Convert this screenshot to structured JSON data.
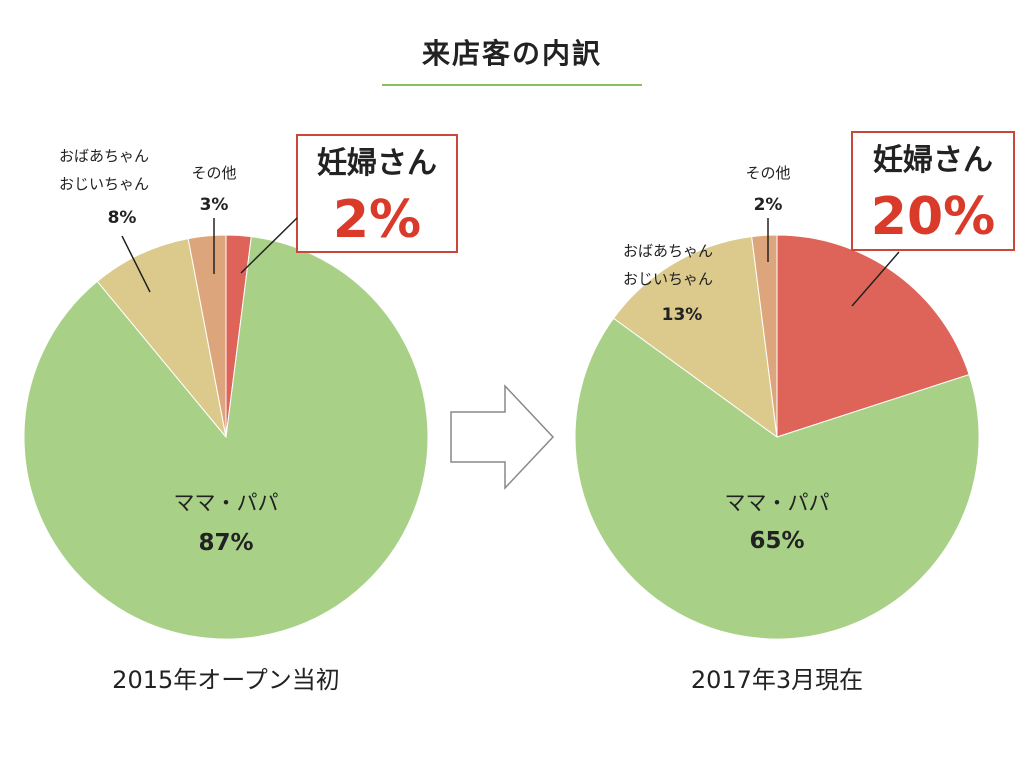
{
  "title": "来店客の内訳",
  "chart_data": [
    {
      "type": "pie",
      "caption": "2015年オープン当初",
      "slices": [
        {
          "key": "pregnant",
          "label": "妊婦さん",
          "value": 2,
          "display": "2%",
          "color": "#de6459"
        },
        {
          "key": "parents",
          "label": "ママ・パパ",
          "value": 87,
          "display": "87%",
          "color": "#a8d187"
        },
        {
          "key": "grandparents",
          "label": [
            "おばあちゃん",
            "おじいちゃん"
          ],
          "value": 8,
          "display": "8%",
          "color": "#dcca8c"
        },
        {
          "key": "other",
          "label": "その他",
          "value": 3,
          "display": "3%",
          "color": "#dda57b"
        }
      ]
    },
    {
      "type": "pie",
      "caption": "2017年3月現在",
      "slices": [
        {
          "key": "pregnant",
          "label": "妊婦さん",
          "value": 20,
          "display": "20%",
          "color": "#de6459"
        },
        {
          "key": "parents",
          "label": "ママ・パパ",
          "value": 65,
          "display": "65%",
          "color": "#a8d187"
        },
        {
          "key": "grandparents",
          "label": [
            "おばあちゃん",
            "おじいちゃん"
          ],
          "value": 13,
          "display": "13%",
          "color": "#dcca8c"
        },
        {
          "key": "other",
          "label": "その他",
          "value": 2,
          "display": "2%",
          "color": "#dda57b"
        }
      ]
    }
  ],
  "colors": {
    "title_rule": "#8bbf5c",
    "highlight_border": "#c9473b",
    "highlight_text": "#d93a2a",
    "arrow_stroke": "#888888"
  },
  "arrow_icon": "right-arrow-icon"
}
